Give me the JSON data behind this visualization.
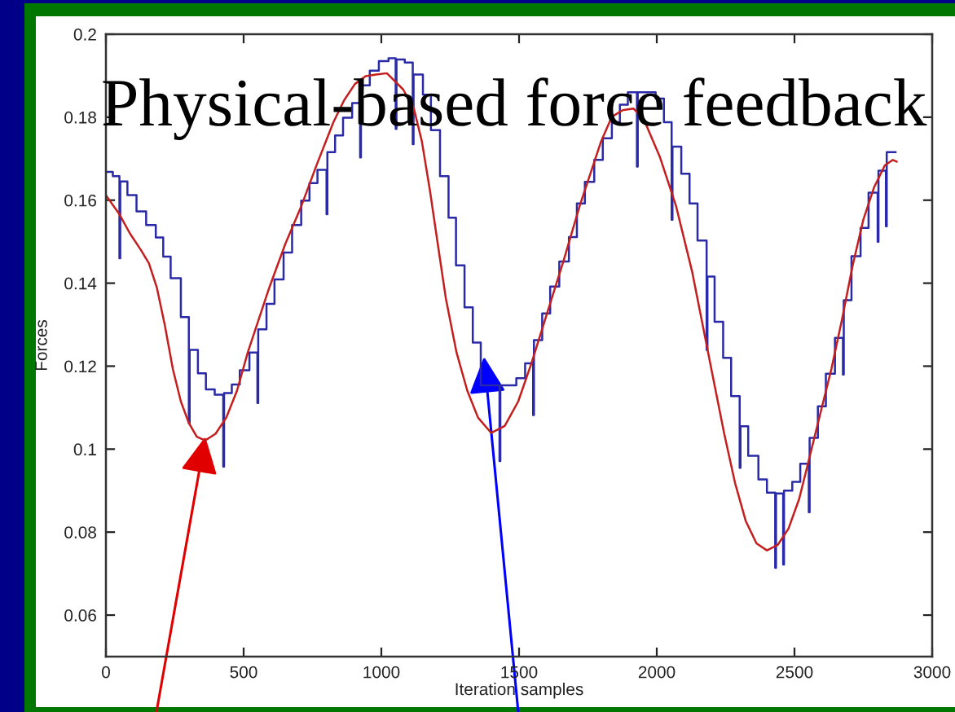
{
  "chart_data": {
    "type": "line",
    "title": "Physical-based force feedback",
    "xlabel": "Iteration samples",
    "ylabel": "Forces",
    "xlim": [
      0,
      3000
    ],
    "xticks": [
      0,
      500,
      1000,
      1500,
      2000,
      2500,
      3000
    ],
    "ylim": [
      0.05,
      0.2
    ],
    "yticks": [
      0.06,
      0.08,
      0.1,
      0.12,
      0.14,
      0.16,
      0.18,
      0.2
    ],
    "series": [
      {
        "type": "step",
        "color": "#2a2aa8",
        "x": [
          0,
          25,
          49,
          52,
          78,
          111,
          146,
          181,
          208,
          235,
          272,
          301,
          304,
          334,
          363,
          395,
          426,
          429,
          457,
          486,
          521,
          550,
          553,
          583,
          612,
          645,
          676,
          709,
          739,
          768,
          801,
          804,
          832,
          861,
          894,
          923,
          926,
          958,
          991,
          1026,
          1052,
          1055,
          1085,
          1114,
          1117,
          1151,
          1180,
          1213,
          1244,
          1271,
          1302,
          1332,
          1361,
          1429,
          1432,
          1490,
          1522,
          1551,
          1554,
          1584,
          1613,
          1646,
          1681,
          1710,
          1739,
          1773,
          1804,
          1837,
          1866,
          1895,
          1928,
          1931,
          1996,
          2026,
          2054,
          2057,
          2089,
          2119,
          2148,
          2181,
          2184,
          2210,
          2241,
          2270,
          2301,
          2304,
          2332,
          2369,
          2400,
          2430,
          2433,
          2459,
          2462,
          2492,
          2521,
          2552,
          2555,
          2585,
          2614,
          2647,
          2676,
          2679,
          2707,
          2740,
          2769,
          2802,
          2805,
          2832,
          2835,
          2867
        ],
        "values": [
          0.1668,
          0.1658,
          0.146,
          0.1645,
          0.1612,
          0.1573,
          0.154,
          0.151,
          0.1464,
          0.1412,
          0.1318,
          0.1063,
          0.1239,
          0.1183,
          0.1144,
          0.1131,
          0.0958,
          0.1135,
          0.1156,
          0.119,
          0.1233,
          0.1111,
          0.1289,
          0.135,
          0.1409,
          0.1474,
          0.154,
          0.1599,
          0.1641,
          0.1673,
          0.1566,
          0.1716,
          0.1756,
          0.1799,
          0.1834,
          0.1703,
          0.1877,
          0.1912,
          0.1935,
          0.1942,
          0.1772,
          0.1939,
          0.1932,
          0.1735,
          0.1903,
          0.1854,
          0.1769,
          0.1658,
          0.1558,
          0.1443,
          0.1342,
          0.1257,
          0.1154,
          0.0971,
          0.1154,
          0.1171,
          0.1207,
          0.1082,
          0.1263,
          0.1327,
          0.1392,
          0.1452,
          0.1511,
          0.1592,
          0.1644,
          0.1697,
          0.1749,
          0.1788,
          0.183,
          0.186,
          0.1681,
          0.186,
          0.1845,
          0.1788,
          0.1553,
          0.1729,
          0.1664,
          0.1592,
          0.1503,
          0.1239,
          0.1416,
          0.1307,
          0.122,
          0.1128,
          0.0955,
          0.1055,
          0.0984,
          0.0927,
          0.0895,
          0.0714,
          0.0893,
          0.0722,
          0.09,
          0.0921,
          0.0965,
          0.0848,
          0.1027,
          0.1103,
          0.1182,
          0.1268,
          0.118,
          0.1359,
          0.1465,
          0.1533,
          0.1618,
          0.15,
          0.1671,
          0.1537,
          0.1716,
          0.1716
        ]
      },
      {
        "color": "#c41e1e",
        "x": [
          0,
          49,
          87,
          126,
          156,
          185,
          214,
          243,
          272,
          301,
          330,
          360,
          398,
          437,
          476,
          515,
          554,
          593,
          651,
          709,
          768,
          826,
          865,
          904,
          943,
          981,
          1020,
          1079,
          1118,
          1147,
          1176,
          1205,
          1234,
          1273,
          1312,
          1351,
          1399,
          1448,
          1497,
          1545,
          1594,
          1662,
          1720,
          1759,
          1798,
          1837,
          1876,
          1915,
          1953,
          2012,
          2070,
          2128,
          2167,
          2206,
          2245,
          2284,
          2323,
          2362,
          2400,
          2439,
          2478,
          2517,
          2556,
          2595,
          2634,
          2672,
          2711,
          2750,
          2789,
          2828,
          2857,
          2871
        ],
        "values": [
          0.1612,
          0.1566,
          0.152,
          0.1481,
          0.1448,
          0.1389,
          0.1298,
          0.1193,
          0.1115,
          0.1063,
          0.103,
          0.1021,
          0.1037,
          0.1076,
          0.1141,
          0.1233,
          0.1311,
          0.1389,
          0.1494,
          0.1585,
          0.169,
          0.1788,
          0.1841,
          0.188,
          0.1899,
          0.1903,
          0.1906,
          0.1867,
          0.1821,
          0.1742,
          0.1625,
          0.1494,
          0.1364,
          0.1233,
          0.1141,
          0.1076,
          0.1039,
          0.1056,
          0.1115,
          0.1207,
          0.1311,
          0.1455,
          0.1586,
          0.1664,
          0.1742,
          0.1801,
          0.1817,
          0.1821,
          0.1795,
          0.1703,
          0.1586,
          0.1429,
          0.1298,
          0.1167,
          0.1037,
          0.0919,
          0.0827,
          0.0773,
          0.0756,
          0.0769,
          0.0808,
          0.088,
          0.0984,
          0.1089,
          0.1193,
          0.1311,
          0.1442,
          0.1553,
          0.1631,
          0.1684,
          0.1697,
          0.1693
        ]
      }
    ]
  }
}
